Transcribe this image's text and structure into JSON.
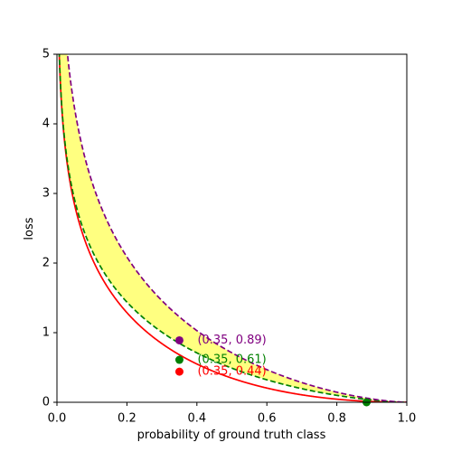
{
  "chart_data": {
    "type": "line",
    "title": "",
    "xlabel": "probability of ground truth class",
    "ylabel": "loss",
    "xlim": [
      0,
      1
    ],
    "ylim": [
      0,
      5
    ],
    "xticks": [
      "0.0",
      "0.2",
      "0.4",
      "0.6",
      "0.8",
      "1.0"
    ],
    "yticks": [
      "0",
      "1",
      "2",
      "3",
      "4",
      "5"
    ],
    "grid": false,
    "legend": "none",
    "series": [
      {
        "style": "solid",
        "color": "#ff0000",
        "gamma": 1.0,
        "multiplier": 1.0
      },
      {
        "style": "dashed",
        "color": "#008000",
        "gamma": 0.5,
        "multiplier": 1.0
      },
      {
        "style": "dashed",
        "color": "#800080",
        "gamma": 0.5,
        "multiplier": 1.45
      }
    ],
    "band": {
      "between": [
        1,
        2
      ],
      "color": "#ffff80"
    },
    "points": [
      {
        "x": 0.35,
        "y": 0.44,
        "color": "#ff0000",
        "label": "(0.35, 0.44)"
      },
      {
        "x": 0.35,
        "y": 0.61,
        "color": "#008000",
        "label": "(0.35, 0.61)"
      },
      {
        "x": 0.35,
        "y": 0.89,
        "color": "#800080",
        "label": "(0.35, 0.89)"
      },
      {
        "x": 0.885,
        "y": 0.0,
        "color": "#008000",
        "label": ""
      }
    ]
  }
}
